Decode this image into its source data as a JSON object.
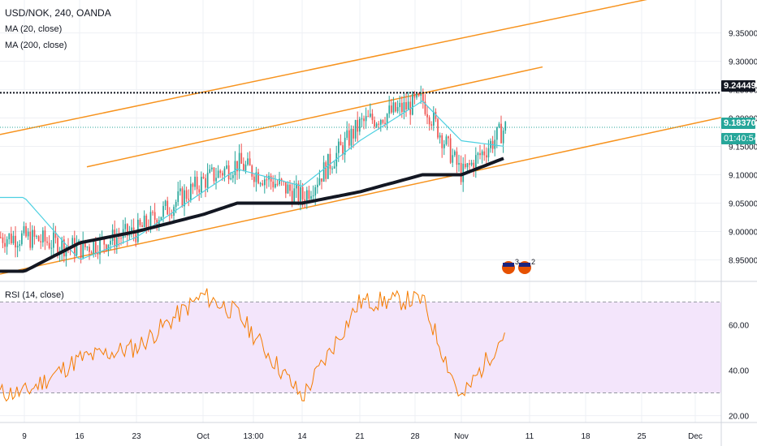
{
  "header": {
    "symbol_line": "USD/NOK, 240, OANDA",
    "ma20_label": "MA (20, close)",
    "ma200_label": "MA (200, close)",
    "rsi_label": "RSI (14, close)"
  },
  "badges": {
    "resistance_price": "9.24449",
    "last_price": "9.18370",
    "countdown": "01:40:54"
  },
  "events": {
    "count_a": "3",
    "count_b": "2"
  },
  "colors": {
    "up": "#26a69a",
    "down": "#ef5350",
    "ma20": "#4dd0e1",
    "ma200": "#131722",
    "channel": "#f7931e",
    "rsi": "#f57c00",
    "rsi_band": "#f3e5fb"
  },
  "chart_data": [
    {
      "type": "line",
      "title": "USD/NOK, 240, OANDA",
      "xlabel": "",
      "ylabel": "",
      "x_tick_labels": [
        "9",
        "16",
        "23",
        "Oct",
        "13:00",
        "14",
        "21",
        "28",
        "Nov",
        "11",
        "18",
        "25",
        "Dec"
      ],
      "y_tick_labels": [
        "8.95000",
        "9.00000",
        "9.05000",
        "9.10000",
        "9.15000",
        "9.20000",
        "9.25000",
        "9.30000",
        "9.35000"
      ],
      "ylim": [
        8.915,
        9.408
      ],
      "grid": true,
      "legend": "top-left",
      "key_x": [
        "Sep 9",
        "Sep 16",
        "Sep 23",
        "Oct 1",
        "Oct 7",
        "Oct 14",
        "Oct 21",
        "Oct 27",
        "Nov 1",
        "Nov 7"
      ],
      "series": [
        {
          "name": "",
          "values": [
            8.99,
            8.97,
            9.0,
            9.09,
            9.12,
            9.06,
            9.19,
            9.23,
            9.1,
            9.184
          ]
        },
        {
          "name": "MA (20, close)",
          "values": [
            9.06,
            8.95,
            8.99,
            9.07,
            9.11,
            9.08,
            9.16,
            9.23,
            9.16,
            9.15
          ]
        },
        {
          "name": "MA (200, close)",
          "values": [
            8.93,
            8.98,
            9.0,
            9.03,
            9.05,
            9.05,
            9.07,
            9.1,
            9.1,
            9.13
          ]
        }
      ],
      "annotations": [
        {
          "label": "9.24449",
          "type": "horizontal line",
          "value": 9.24449
        },
        {
          "label": "9.18370",
          "type": "last price line",
          "value": 9.1837
        }
      ]
    },
    {
      "type": "line",
      "title": "RSI (14, close)",
      "y_tick_labels": [
        "20.00",
        "40.00",
        "60.00"
      ],
      "ylim": [
        17,
        78
      ],
      "band": [
        30,
        70
      ],
      "x": [
        "Sep 9",
        "Sep 16",
        "Sep 23",
        "Oct 1",
        "Oct 7",
        "Oct 14",
        "Oct 21",
        "Oct 27",
        "Nov 1",
        "Nov 7"
      ],
      "series": [
        {
          "name": "RSI (14, close)",
          "values": [
            30,
            45,
            50,
            73,
            65,
            28,
            70,
            71,
            27,
            57
          ]
        }
      ]
    }
  ]
}
